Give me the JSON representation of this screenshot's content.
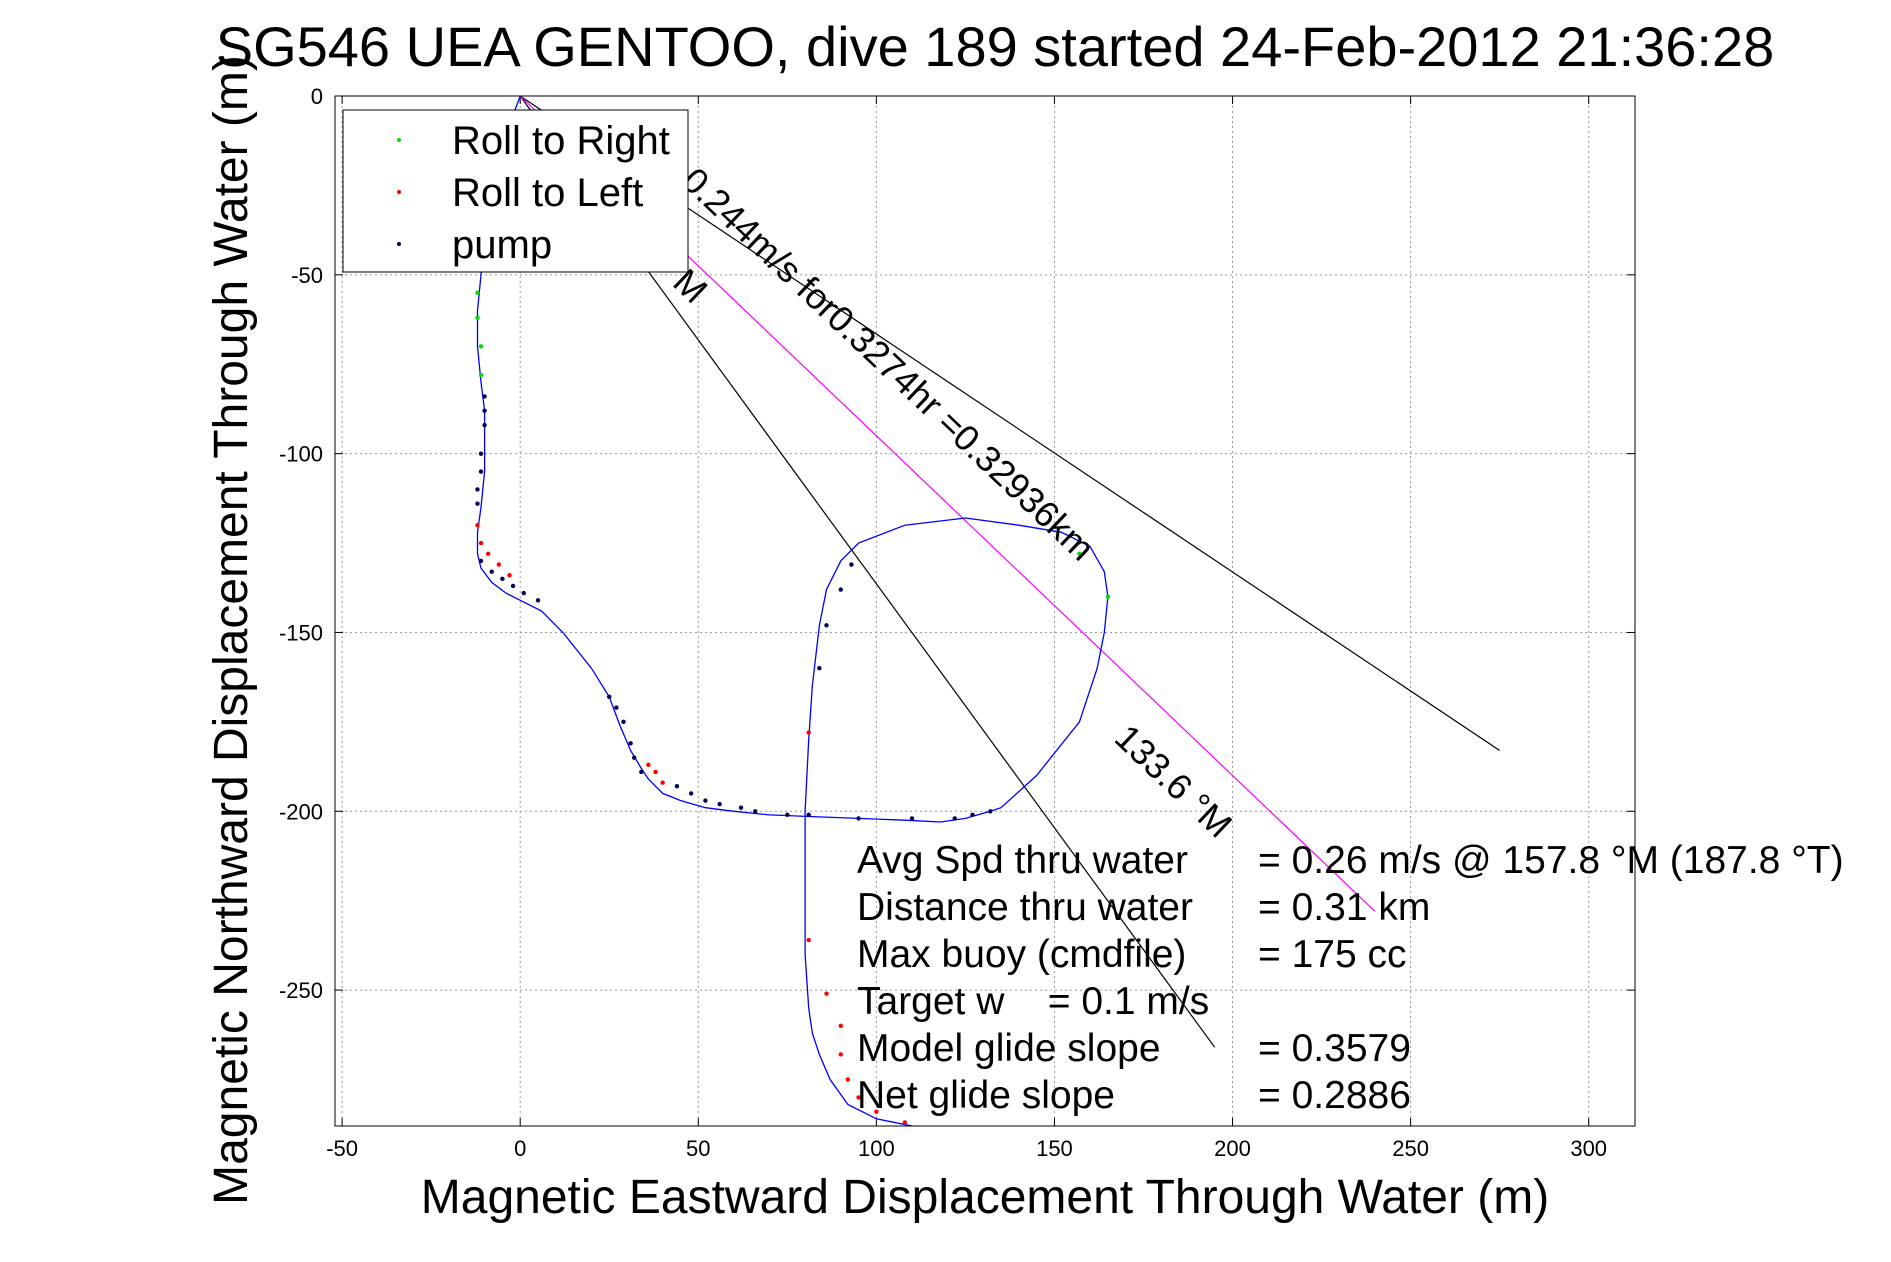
{
  "chart_data": {
    "type": "line",
    "title": "SG546 UEA GENTOO, dive 189 started 24-Feb-2012 21:36:28",
    "xlabel": "Magnetic Eastward Displacement Through Water (m)",
    "ylabel": "Magnetic Northward Displacement Through Water (m)",
    "xlim": [
      -52,
      313
    ],
    "ylim": [
      -288,
      0
    ],
    "xticks": [
      -50,
      0,
      50,
      100,
      150,
      200,
      250,
      300
    ],
    "yticks": [
      0,
      -50,
      -100,
      -150,
      -200,
      -250
    ],
    "grid": true,
    "legend_position": "top-left",
    "legend": [
      {
        "label": "Roll to Right",
        "color": "#00dd00"
      },
      {
        "label": "Roll to Left",
        "color": "#ff0000"
      },
      {
        "label": "pump",
        "color": "#000055"
      }
    ],
    "track": {
      "name": "track",
      "color": "#0000ff",
      "x": [
        0,
        -3,
        -6,
        -8,
        -10,
        -11,
        -12,
        -12,
        -11,
        -10,
        -10,
        -10,
        -11,
        -12,
        -12,
        -11,
        -8,
        -4,
        0,
        6,
        12,
        20,
        25,
        28,
        31,
        34,
        36,
        40,
        45,
        52,
        60,
        70,
        82,
        95,
        108,
        118,
        125,
        132,
        135,
        145,
        157,
        162,
        164,
        165,
        164,
        160,
        152,
        140,
        125,
        108,
        95,
        90,
        86,
        84,
        82,
        81,
        80,
        80,
        80,
        81,
        82,
        84,
        87,
        92,
        100,
        110,
        118
      ],
      "y": [
        0,
        -8,
        -18,
        -28,
        -40,
        -50,
        -60,
        -70,
        -80,
        -88,
        -95,
        -105,
        -115,
        -122,
        -128,
        -132,
        -136,
        -139,
        -141,
        -144,
        -150,
        -160,
        -168,
        -176,
        -183,
        -188,
        -191,
        -195,
        -197,
        -199,
        -200,
        -201,
        -201.5,
        -202,
        -202.5,
        -203,
        -202,
        -200,
        -199,
        -190,
        -175,
        -160,
        -150,
        -140,
        -133,
        -126,
        -122,
        -120,
        -118,
        -120,
        -125,
        -130,
        -138,
        -148,
        -165,
        -180,
        -200,
        -220,
        -240,
        -255,
        -262,
        -268,
        -275,
        -282,
        -286,
        -288,
        -290
      ]
    },
    "roll_right_markers": {
      "color": "#00dd00",
      "x": [
        -12,
        -12,
        -11,
        -11,
        157,
        165
      ],
      "y": [
        -55,
        -62,
        -70,
        -78,
        -128,
        -140
      ]
    },
    "roll_left_markers": {
      "color": "#ff0000",
      "x": [
        -12,
        -11,
        -9,
        -6,
        -3,
        36,
        38,
        40,
        81,
        81,
        86,
        90,
        90,
        92,
        95,
        100,
        108
      ],
      "y": [
        -120,
        -125,
        -128,
        -131,
        -134,
        -187,
        -189,
        -192,
        -178,
        -236,
        -251,
        -260,
        -268,
        -275,
        -280,
        -284,
        -287
      ]
    },
    "pump_markers": {
      "color": "#000055",
      "x": [
        -10,
        -10,
        -10,
        -11,
        -11,
        -12,
        -12,
        -11,
        -8,
        -5,
        -2,
        1,
        5,
        25,
        27,
        29,
        31,
        32,
        34,
        44,
        48,
        52,
        56,
        62,
        66,
        75,
        81,
        95,
        110,
        122,
        127,
        132,
        84,
        86,
        90,
        93
      ],
      "y": [
        -84,
        -88,
        -92,
        -100,
        -105,
        -110,
        -114,
        -130,
        -133,
        -135,
        -137,
        -139,
        -141,
        -168,
        -171,
        -175,
        -181,
        -185,
        -189,
        -193,
        -195,
        -197,
        -198,
        -199,
        -200,
        -201,
        -201,
        -202,
        -202,
        -202,
        -201,
        -200,
        -160,
        -148,
        -138,
        -131
      ]
    },
    "reference_lines": [
      {
        "name": "ref-line-outer",
        "color": "#000000",
        "x": [
          0,
          275
        ],
        "y": [
          0,
          -183
        ]
      },
      {
        "name": "ref-line-inner",
        "color": "#000000",
        "x": [
          0,
          195
        ],
        "y": [
          0,
          -266
        ]
      },
      {
        "name": "ref-line-magenta",
        "color": "#ff00ff",
        "x": [
          0,
          240
        ],
        "y": [
          0,
          -228
        ]
      }
    ]
  },
  "annotations": {
    "diag_speed": "0.244m/s for0.3274hr =0.32936km",
    "diag_heading_top": "M",
    "diag_heading": "133.6 °M"
  },
  "stats": {
    "avg_spd_label": "Avg Spd thru water",
    "avg_spd_value": "=  0.26 m/s @ 157.8 °M (187.8 °T)",
    "distance_label": "Distance thru water",
    "distance_value": "=  0.31 km",
    "max_buoy_label": "Max buoy (cmdfile)",
    "max_buoy_value": "= 175 cc",
    "target_w": "Target w    = 0.1 m/s",
    "model_glide_label": "Model glide slope",
    "model_glide_value": "= 0.3579",
    "net_glide_label": "Net glide slope",
    "net_glide_value": "= 0.2886"
  }
}
